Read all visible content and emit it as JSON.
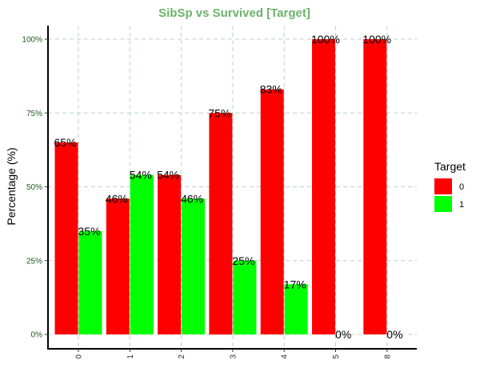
{
  "chart_data": {
    "type": "bar",
    "title": "SibSp vs Survived [Target]",
    "ylabel": "Percentage (%)",
    "xlabel": "",
    "categories": [
      "0",
      "1",
      "2",
      "3",
      "4",
      "5",
      "8"
    ],
    "ylim": [
      0,
      100
    ],
    "yticks": [
      0,
      25,
      50,
      75,
      100
    ],
    "ytick_labels": [
      "0%",
      "25%",
      "50%",
      "75%",
      "100%"
    ],
    "grid": "dashed",
    "series": [
      {
        "name": "0",
        "color": "#FF0000",
        "values": [
          65,
          46,
          54,
          75,
          83,
          100,
          100
        ],
        "labels": [
          "65%",
          "46%",
          "54%",
          "75%",
          "83%",
          "100%",
          "100%"
        ]
      },
      {
        "name": "1",
        "color": "#00FF00",
        "values": [
          35,
          54,
          46,
          25,
          17,
          0,
          0
        ],
        "labels": [
          "35%",
          "54%",
          "46%",
          "25%",
          "17%",
          "0%",
          "0%"
        ]
      }
    ],
    "legend": {
      "title": "Target",
      "placement": "right"
    },
    "colors": {
      "title": "#6BB26B",
      "ytick": "#1F5A1F",
      "grid": "#B9D3CC"
    }
  }
}
